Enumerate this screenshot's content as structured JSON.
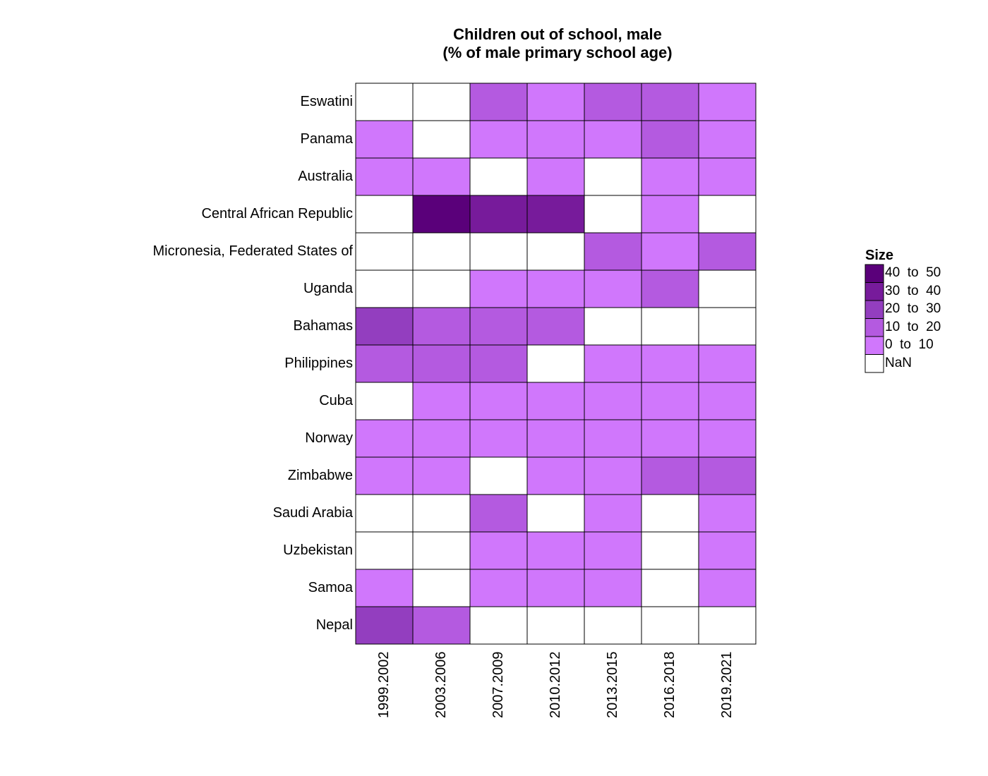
{
  "chart_data": {
    "type": "heatmap",
    "title": "Children out of school, male",
    "subtitle": "(% of male primary school age)",
    "columns": [
      "1999.2002",
      "2003.2006",
      "2007.2009",
      "2010.2012",
      "2013.2015",
      "2016.2018",
      "2019.2021"
    ],
    "rows": [
      "Eswatini",
      "Panama",
      "Australia",
      "Central African Republic",
      "Micronesia, Federated States of",
      "Uganda",
      "Bahamas",
      "Philippines",
      "Cuba",
      "Norway",
      "Zimbabwe",
      "Saudi Arabia",
      "Uzbekistan",
      "Samoa",
      "Nepal"
    ],
    "bins": [
      [
        "NaN",
        "NaN",
        "10 to 20",
        "0 to 10",
        "10 to 20",
        "10 to 20",
        "0 to 10"
      ],
      [
        "0 to 10",
        "NaN",
        "0 to 10",
        "0 to 10",
        "0 to 10",
        "10 to 20",
        "0 to 10"
      ],
      [
        "0 to 10",
        "0 to 10",
        "NaN",
        "0 to 10",
        "NaN",
        "0 to 10",
        "0 to 10"
      ],
      [
        "NaN",
        "40 to 50",
        "30 to 40",
        "30 to 40",
        "NaN",
        "0 to 10",
        "NaN"
      ],
      [
        "NaN",
        "NaN",
        "NaN",
        "NaN",
        "10 to 20",
        "0 to 10",
        "10 to 20"
      ],
      [
        "NaN",
        "NaN",
        "0 to 10",
        "0 to 10",
        "0 to 10",
        "10 to 20",
        "NaN"
      ],
      [
        "20 to 30",
        "10 to 20",
        "10 to 20",
        "10 to 20",
        "NaN",
        "NaN",
        "NaN"
      ],
      [
        "10 to 20",
        "10 to 20",
        "10 to 20",
        "NaN",
        "0 to 10",
        "0 to 10",
        "0 to 10"
      ],
      [
        "NaN",
        "0 to 10",
        "0 to 10",
        "0 to 10",
        "0 to 10",
        "0 to 10",
        "0 to 10"
      ],
      [
        "0 to 10",
        "0 to 10",
        "0 to 10",
        "0 to 10",
        "0 to 10",
        "0 to 10",
        "0 to 10"
      ],
      [
        "0 to 10",
        "0 to 10",
        "NaN",
        "0 to 10",
        "0 to 10",
        "10 to 20",
        "10 to 20"
      ],
      [
        "NaN",
        "NaN",
        "10 to 20",
        "NaN",
        "0 to 10",
        "NaN",
        "0 to 10"
      ],
      [
        "NaN",
        "NaN",
        "0 to 10",
        "0 to 10",
        "0 to 10",
        "NaN",
        "0 to 10"
      ],
      [
        "0 to 10",
        "NaN",
        "0 to 10",
        "0 to 10",
        "0 to 10",
        "NaN",
        "0 to 10"
      ],
      [
        "20 to 30",
        "10 to 20",
        "NaN",
        "NaN",
        "NaN",
        "NaN",
        "NaN"
      ]
    ],
    "legend": {
      "title": "Size",
      "placement": "right",
      "items": [
        {
          "label": "40  to  50",
          "bin": "40 to 50",
          "color": "#5a007a"
        },
        {
          "label": "30  to  40",
          "bin": "30 to 40",
          "color": "#771b9b"
        },
        {
          "label": "20  to  30",
          "bin": "20 to 30",
          "color": "#933ebf"
        },
        {
          "label": "10  to  20",
          "bin": "10 to 20",
          "color": "#b45ae0"
        },
        {
          "label": "0  to  10",
          "bin": "0 to 10",
          "color": "#d077fc"
        },
        {
          "label": "NaN",
          "bin": "NaN",
          "color": "#ffffff"
        }
      ]
    }
  }
}
